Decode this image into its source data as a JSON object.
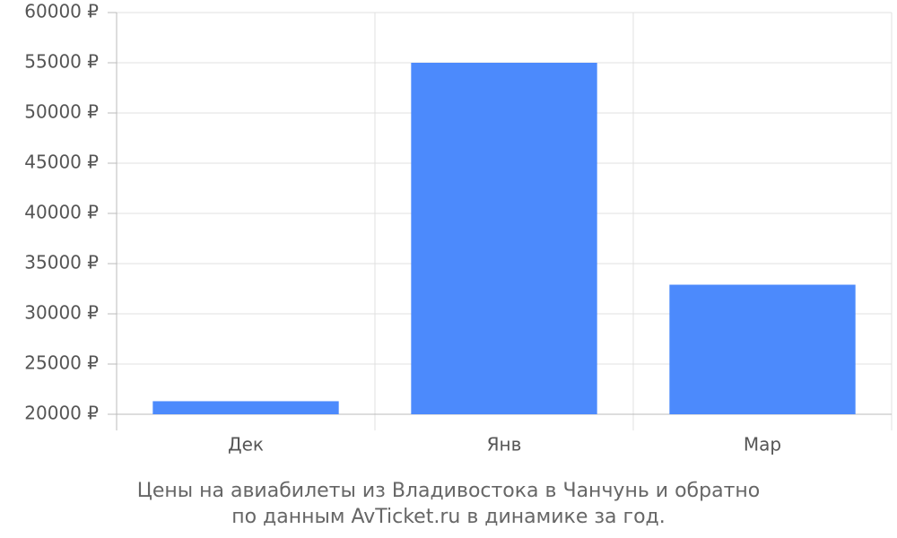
{
  "chart_data": {
    "type": "bar",
    "title_lines": [
      "Цены на авиабилеты из Владивостока в Чанчунь и обратно",
      "по данным AvTicket.ru в динамике за год."
    ],
    "categories": [
      "Дек",
      "Янв",
      "Мар"
    ],
    "values": [
      21300,
      55000,
      32900
    ],
    "color": "#4c8afc",
    "ylim": [
      20000,
      60000
    ],
    "yticks": [
      {
        "value": 20000,
        "label": "20000 ₽"
      },
      {
        "value": 25000,
        "label": "25000 ₽"
      },
      {
        "value": 30000,
        "label": "30000 ₽"
      },
      {
        "value": 35000,
        "label": "35000 ₽"
      },
      {
        "value": 40000,
        "label": "40000 ₽"
      },
      {
        "value": 45000,
        "label": "45000 ₽"
      },
      {
        "value": 50000,
        "label": "50000 ₽"
      },
      {
        "value": 55000,
        "label": "55000 ₽"
      },
      {
        "value": 60000,
        "label": "60000 ₽"
      }
    ],
    "grid": true
  }
}
